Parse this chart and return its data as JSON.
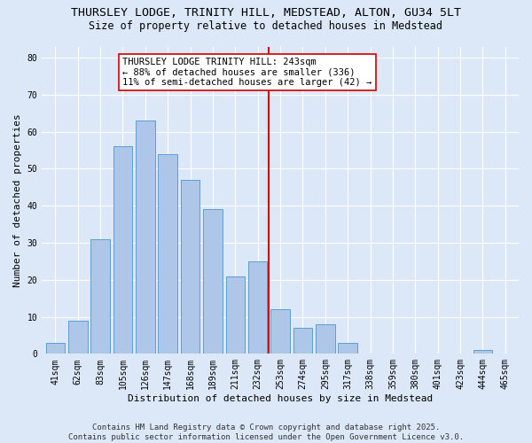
{
  "title_line1": "THURSLEY LODGE, TRINITY HILL, MEDSTEAD, ALTON, GU34 5LT",
  "title_line2": "Size of property relative to detached houses in Medstead",
  "xlabel": "Distribution of detached houses by size in Medstead",
  "ylabel": "Number of detached properties",
  "categories": [
    "41sqm",
    "62sqm",
    "83sqm",
    "105sqm",
    "126sqm",
    "147sqm",
    "168sqm",
    "189sqm",
    "211sqm",
    "232sqm",
    "253sqm",
    "274sqm",
    "295sqm",
    "317sqm",
    "338sqm",
    "359sqm",
    "380sqm",
    "401sqm",
    "423sqm",
    "444sqm",
    "465sqm"
  ],
  "values": [
    3,
    9,
    31,
    56,
    63,
    54,
    47,
    39,
    21,
    25,
    12,
    7,
    8,
    3,
    0,
    0,
    0,
    0,
    0,
    1,
    0
  ],
  "bar_color": "#aec6e8",
  "bar_edge_color": "#5a9fd4",
  "vline_index": 9,
  "vline_color": "#cc0000",
  "annotation_text": "THURSLEY LODGE TRINITY HILL: 243sqm\n← 88% of detached houses are smaller (336)\n11% of semi-detached houses are larger (42) →",
  "annotation_box_color": "#ffffff",
  "annotation_box_edge": "#cc0000",
  "ylim": [
    0,
    83
  ],
  "yticks": [
    0,
    10,
    20,
    30,
    40,
    50,
    60,
    70,
    80
  ],
  "background_color": "#dce8f8",
  "footer_text": "Contains HM Land Registry data © Crown copyright and database right 2025.\nContains public sector information licensed under the Open Government Licence v3.0.",
  "title_fontsize": 9.5,
  "subtitle_fontsize": 8.5,
  "axis_label_fontsize": 8,
  "tick_fontsize": 7,
  "annotation_fontsize": 7.5,
  "footer_fontsize": 6.5
}
